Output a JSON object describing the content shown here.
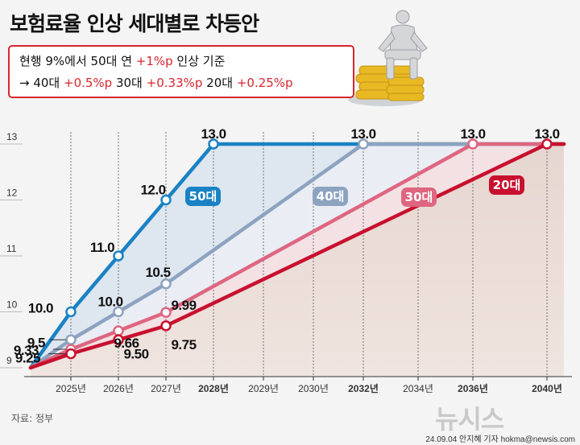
{
  "title": "보험료율 인상 세대별로 차등안",
  "note": {
    "line1_a": "현행 9%에서 50대 연 ",
    "line1_b": "+1%p",
    "line1_c": " 인상 기준",
    "line2_a": "→ 40대 ",
    "line2_b": "+0.5%p",
    "line2_c": " 30대 ",
    "line2_d": "+0.33%p",
    "line2_e": " 20대 ",
    "line2_f": "+0.25%p"
  },
  "source": "자료: 정부",
  "credit": "24.09.04 안지혜 기자 hokma@newsis.com",
  "logo": "뉴시스",
  "colors": {
    "s50": "#1a82c4",
    "s40": "#8ca3c0",
    "s30": "#de6680",
    "s20": "#c8102e",
    "accent": "#d7262e"
  },
  "chart_data": {
    "type": "line",
    "title": "보험료율 인상 세대별로 차등안",
    "xlabel": "",
    "ylabel": "",
    "x_range": [
      2024.2,
      2040.4
    ],
    "ylim": [
      8.93,
      13.12
    ],
    "y_ticks": [
      "9",
      "10",
      "11",
      "12",
      "13"
    ],
    "x_ticks": [
      {
        "x": 2025,
        "label": "2025년",
        "bold": false
      },
      {
        "x": 2026,
        "label": "2026년",
        "bold": false
      },
      {
        "x": 2027,
        "label": "2027년",
        "bold": false
      },
      {
        "x": 2028,
        "label": "2028년",
        "bold": true
      },
      {
        "x": 2029,
        "label": "2029년",
        "bold": false
      },
      {
        "x": 2030,
        "label": "2030년",
        "bold": false
      },
      {
        "x": 2032,
        "label": "2032년",
        "bold": true
      },
      {
        "x": 2034,
        "label": "2034년",
        "bold": false
      },
      {
        "x": 2036,
        "label": "2036년",
        "bold": true
      },
      {
        "x": 2040,
        "label": "2040년",
        "bold": true
      }
    ],
    "series": [
      {
        "name": "50대",
        "color": "#1a82c4",
        "points": [
          [
            2024.3,
            9.0
          ],
          [
            2025,
            10.0
          ],
          [
            2026,
            11.0
          ],
          [
            2027,
            12.0
          ],
          [
            2028,
            13.0
          ],
          [
            2040.4,
            13.0
          ]
        ],
        "markers": [
          {
            "x": 2025,
            "y": 10.0,
            "label": "10.0"
          },
          {
            "x": 2026,
            "y": 11.0,
            "label": "11.0"
          },
          {
            "x": 2027,
            "y": 12.0,
            "label": "12.0"
          },
          {
            "x": 2028,
            "y": 13.0,
            "label": "13.0"
          }
        ]
      },
      {
        "name": "40대",
        "color": "#8ca3c0",
        "points": [
          [
            2024.3,
            9.0
          ],
          [
            2025,
            9.5
          ],
          [
            2026,
            10.0
          ],
          [
            2027,
            10.5
          ],
          [
            2032,
            13.0
          ],
          [
            2040.4,
            13.0
          ]
        ],
        "markers": [
          {
            "x": 2025,
            "y": 9.5,
            "label": "9.5"
          },
          {
            "x": 2026,
            "y": 10.0,
            "label": "10.0"
          },
          {
            "x": 2027,
            "y": 10.5,
            "label": "10.5"
          },
          {
            "x": 2032,
            "y": 13.0,
            "label": "13.0"
          }
        ]
      },
      {
        "name": "30대",
        "color": "#de6680",
        "points": [
          [
            2024.3,
            9.0
          ],
          [
            2025,
            9.33
          ],
          [
            2026,
            9.66
          ],
          [
            2027,
            9.99
          ],
          [
            2036,
            13.0
          ],
          [
            2040.4,
            13.0
          ]
        ],
        "markers": [
          {
            "x": 2025,
            "y": 9.33,
            "label": "9.33"
          },
          {
            "x": 2026,
            "y": 9.66,
            "label": "9.66"
          },
          {
            "x": 2027,
            "y": 9.99,
            "label": "9.99"
          },
          {
            "x": 2036,
            "y": 13.0,
            "label": "13.0"
          }
        ]
      },
      {
        "name": "20대",
        "color": "#c8102e",
        "points": [
          [
            2024.3,
            9.0
          ],
          [
            2025,
            9.25
          ],
          [
            2026,
            9.5
          ],
          [
            2027,
            9.75
          ],
          [
            2040,
            13.0
          ],
          [
            2040.4,
            13.0
          ]
        ],
        "markers": [
          {
            "x": 2025,
            "y": 9.25,
            "label": "9.25"
          },
          {
            "x": 2026,
            "y": 9.5,
            "label": "9.50"
          },
          {
            "x": 2027,
            "y": 9.75,
            "label": "9.75"
          },
          {
            "x": 2040,
            "y": 13.0,
            "label": "13.0"
          }
        ]
      }
    ]
  }
}
